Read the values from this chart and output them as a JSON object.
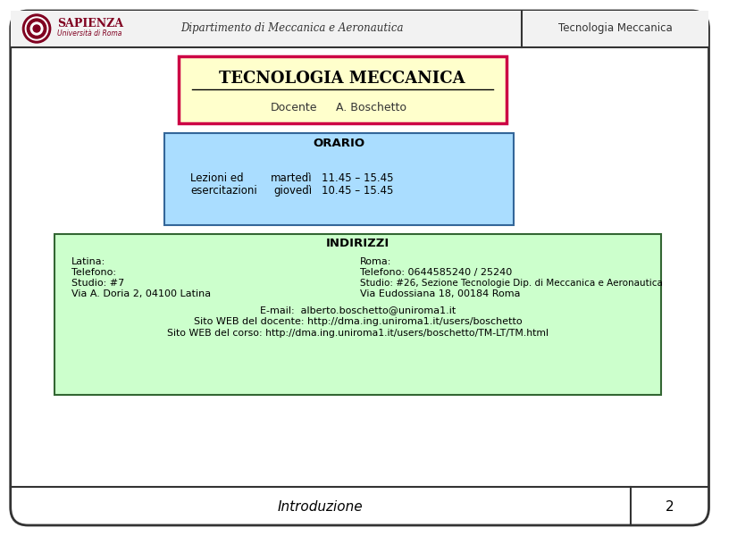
{
  "bg_color": "#ffffff",
  "outer_border_color": "#333333",
  "header_text_dept": "Dipartimento di Meccanica e Aeronautica",
  "header_text_course": "Tecnologia Meccanica",
  "title": "TECNOLOGIA MECCANICA",
  "title_bg": "#ffffcc",
  "title_border": "#cc0044",
  "docente_label": "Docente",
  "docente_name": "A. Boschetto",
  "orario_bg": "#aaddff",
  "orario_border": "#336699",
  "orario_title": "ORARIO",
  "indirizzi_bg": "#ccffcc",
  "indirizzi_border": "#336633",
  "indirizzi_title": "INDIRIZZI",
  "latina_label": "Latina:",
  "latina_tel": "Telefono:",
  "latina_studio": "Studio: #7",
  "latina_addr": "Via A. Doria 2, 04100 Latina",
  "roma_label": "Roma:",
  "roma_tel": "Telefono: 0644585240 / 25240",
  "roma_studio": "Studio: #26, Sezione Tecnologie Dip. di Meccanica e Aeronautica",
  "roma_addr": "Via Eudossiana 18, 00184 Roma",
  "email_line": "E-mail:  alberto.boschetto@uniroma1.it",
  "web1": "Sito WEB del docente: http://dma.ing.uniroma1.it/users/boschetto",
  "web2": "Sito WEB del corso: http://dma.ing.uniroma1.it/users/boschetto/TM-LT/TM.html",
  "footer_text": "Introduzione",
  "footer_page": "2"
}
